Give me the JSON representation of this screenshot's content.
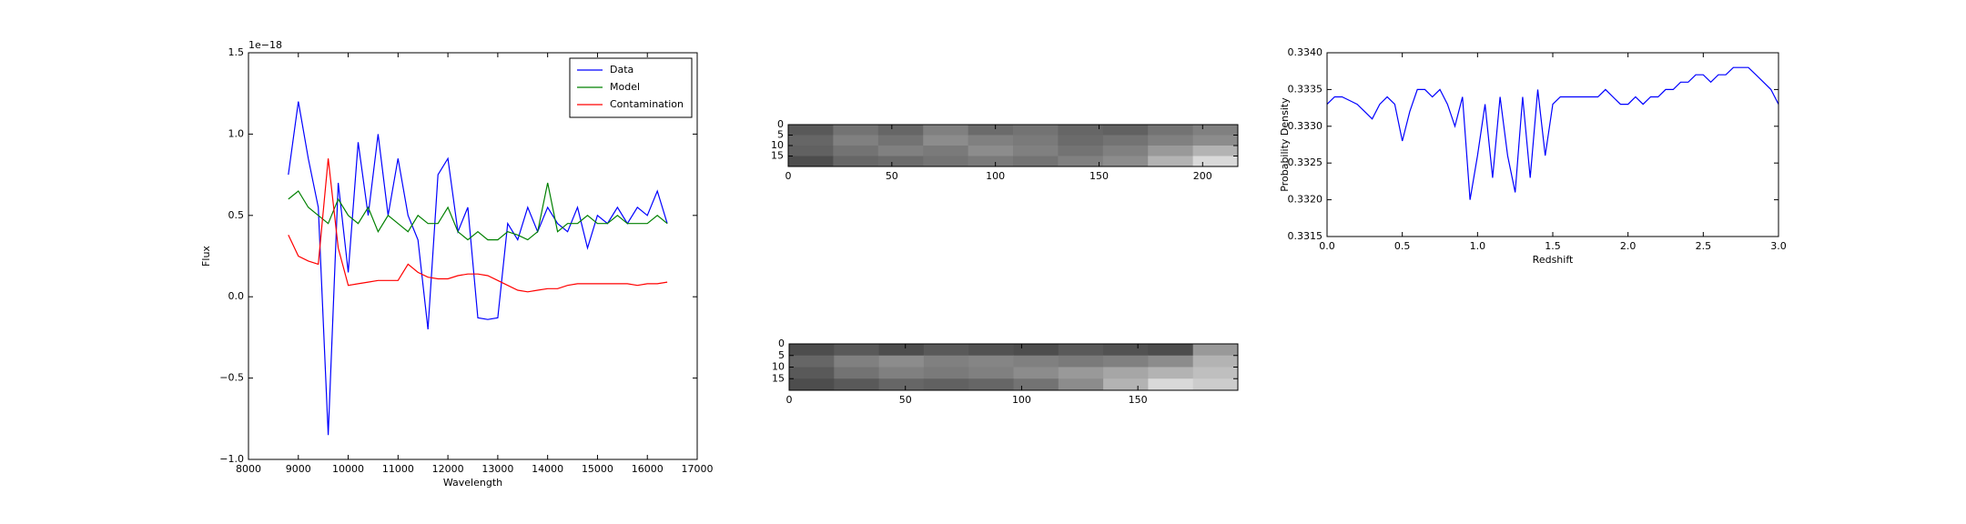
{
  "chart_data": [
    {
      "type": "line",
      "x_label": "Wavelength",
      "y_label": "Flux",
      "y_offset_label": "1e−18",
      "x": [
        8800,
        9000,
        9200,
        9400,
        9600,
        9800,
        10000,
        10200,
        10400,
        10600,
        10800,
        11000,
        11200,
        11400,
        11600,
        11800,
        12000,
        12200,
        12400,
        12600,
        12800,
        13000,
        13200,
        13400,
        13600,
        13800,
        14000,
        14200,
        14400,
        14600,
        14800,
        15000,
        15200,
        15400,
        15600,
        15800,
        16000,
        16200,
        16400
      ],
      "series": [
        {
          "name": "Data",
          "color": "#0000ff",
          "values": [
            0.75,
            1.2,
            0.85,
            0.55,
            -0.85,
            0.7,
            0.15,
            0.95,
            0.5,
            1.0,
            0.5,
            0.85,
            0.5,
            0.35,
            -0.2,
            0.75,
            0.85,
            0.4,
            0.55,
            -0.13,
            -0.14,
            -0.13,
            0.45,
            0.35,
            0.55,
            0.4,
            0.55,
            0.45,
            0.4,
            0.55,
            0.3,
            0.5,
            0.45,
            0.55,
            0.45,
            0.55,
            0.5,
            0.65,
            0.45
          ]
        },
        {
          "name": "Model",
          "color": "#008000",
          "values": [
            0.6,
            0.65,
            0.55,
            0.5,
            0.45,
            0.6,
            0.5,
            0.45,
            0.55,
            0.4,
            0.5,
            0.45,
            0.4,
            0.5,
            0.45,
            0.45,
            0.55,
            0.4,
            0.35,
            0.4,
            0.35,
            0.35,
            0.4,
            0.38,
            0.35,
            0.4,
            0.7,
            0.4,
            0.45,
            0.45,
            0.5,
            0.45,
            0.45,
            0.5,
            0.45,
            0.45,
            0.45,
            0.5,
            0.45
          ]
        },
        {
          "name": "Contamination",
          "color": "#ff0000",
          "values": [
            0.38,
            0.25,
            0.22,
            0.2,
            0.85,
            0.3,
            0.07,
            0.08,
            0.09,
            0.1,
            0.1,
            0.1,
            0.2,
            0.15,
            0.12,
            0.11,
            0.11,
            0.13,
            0.14,
            0.14,
            0.13,
            0.1,
            0.07,
            0.04,
            0.03,
            0.04,
            0.05,
            0.05,
            0.07,
            0.08,
            0.08,
            0.08,
            0.08,
            0.08,
            0.08,
            0.07,
            0.08,
            0.08,
            0.09
          ]
        }
      ],
      "xlim": [
        8000,
        17000
      ],
      "xticks": [
        8000,
        9000,
        10000,
        11000,
        12000,
        13000,
        14000,
        15000,
        16000,
        17000
      ],
      "ylim": [
        -1,
        1.5
      ],
      "yticks": [
        {
          "value": -1,
          "label": "−1.0"
        },
        {
          "value": -0.5,
          "label": "−0.5"
        },
        {
          "value": 0,
          "label": "0.0"
        },
        0.5,
        {
          "value": 1,
          "label": "1.0"
        },
        1.5
      ],
      "legend": "upper right"
    },
    {
      "type": "image",
      "colormap": "gray",
      "z": [
        [
          0.35,
          0.45,
          0.4,
          0.5,
          0.42,
          0.45,
          0.4,
          0.38,
          0.45,
          0.5
        ],
        [
          0.4,
          0.5,
          0.45,
          0.55,
          0.5,
          0.48,
          0.42,
          0.45,
          0.5,
          0.55
        ],
        [
          0.38,
          0.45,
          0.5,
          0.48,
          0.55,
          0.5,
          0.45,
          0.5,
          0.6,
          0.7
        ],
        [
          0.3,
          0.4,
          0.42,
          0.45,
          0.48,
          0.45,
          0.5,
          0.55,
          0.7,
          0.85
        ]
      ],
      "xlim": [
        0,
        217
      ],
      "xticks": [
        0,
        50,
        100,
        150,
        200
      ],
      "ylim": [
        20,
        0
      ],
      "yticks": [
        0,
        5,
        10,
        15
      ]
    },
    {
      "type": "image",
      "colormap": "gray",
      "z": [
        [
          0.3,
          0.35,
          0.3,
          0.35,
          0.32,
          0.3,
          0.35,
          0.32,
          0.3,
          0.6
        ],
        [
          0.4,
          0.5,
          0.55,
          0.5,
          0.52,
          0.5,
          0.48,
          0.5,
          0.55,
          0.7
        ],
        [
          0.35,
          0.45,
          0.5,
          0.48,
          0.5,
          0.55,
          0.6,
          0.65,
          0.7,
          0.75
        ],
        [
          0.3,
          0.35,
          0.4,
          0.38,
          0.4,
          0.45,
          0.55,
          0.7,
          0.85,
          0.8
        ]
      ],
      "xlim": [
        0,
        193
      ],
      "xticks": [
        0,
        50,
        100,
        150
      ],
      "ylim": [
        20,
        0
      ],
      "yticks": [
        0,
        5,
        10,
        15
      ]
    },
    {
      "type": "line",
      "x_label": "Redshift",
      "y_label": "Probability Density",
      "x": [
        0,
        0.05,
        0.1,
        0.15,
        0.2,
        0.25,
        0.3,
        0.35,
        0.4,
        0.45,
        0.5,
        0.55,
        0.6,
        0.65,
        0.7,
        0.75,
        0.8,
        0.85,
        0.9,
        0.95,
        1,
        1.05,
        1.1,
        1.15,
        1.2,
        1.25,
        1.3,
        1.35,
        1.4,
        1.45,
        1.5,
        1.55,
        1.6,
        1.65,
        1.7,
        1.75,
        1.8,
        1.85,
        1.9,
        1.95,
        2,
        2.05,
        2.1,
        2.15,
        2.2,
        2.25,
        2.3,
        2.35,
        2.4,
        2.45,
        2.5,
        2.55,
        2.6,
        2.65,
        2.7,
        2.75,
        2.8,
        2.85,
        2.9,
        2.95,
        3
      ],
      "series": [
        {
          "color": "#0000ff",
          "values": [
            0.3333,
            0.3334,
            0.3334,
            0.33335,
            0.3333,
            0.3332,
            0.3331,
            0.3333,
            0.3334,
            0.3333,
            0.3328,
            0.3332,
            0.3335,
            0.3335,
            0.3334,
            0.3335,
            0.3333,
            0.333,
            0.3334,
            0.332,
            0.3326,
            0.3333,
            0.3323,
            0.3334,
            0.3326,
            0.3321,
            0.3334,
            0.3323,
            0.3335,
            0.3326,
            0.3333,
            0.3334,
            0.3334,
            0.3334,
            0.3334,
            0.3334,
            0.3334,
            0.3335,
            0.3334,
            0.3333,
            0.3333,
            0.3334,
            0.3333,
            0.3334,
            0.3334,
            0.3335,
            0.3335,
            0.3336,
            0.3336,
            0.3337,
            0.3337,
            0.3336,
            0.3337,
            0.3337,
            0.3338,
            0.3338,
            0.3338,
            0.3337,
            0.3336,
            0.3335,
            0.3333
          ]
        }
      ],
      "xlim": [
        0,
        3
      ],
      "xticks": [
        {
          "value": 0,
          "label": "0.0"
        },
        0.5,
        {
          "value": 1,
          "label": "1.0"
        },
        1.5,
        {
          "value": 2,
          "label": "2.0"
        },
        2.5,
        {
          "value": 3,
          "label": "3.0"
        }
      ],
      "ylim": [
        0.3315,
        0.334
      ],
      "yticks": [
        0.3315,
        {
          "value": 0.332,
          "label": "0.3320"
        },
        0.3325,
        {
          "value": 0.333,
          "label": "0.3330"
        },
        0.3335,
        {
          "value": 0.334,
          "label": "0.3340"
        }
      ]
    }
  ]
}
